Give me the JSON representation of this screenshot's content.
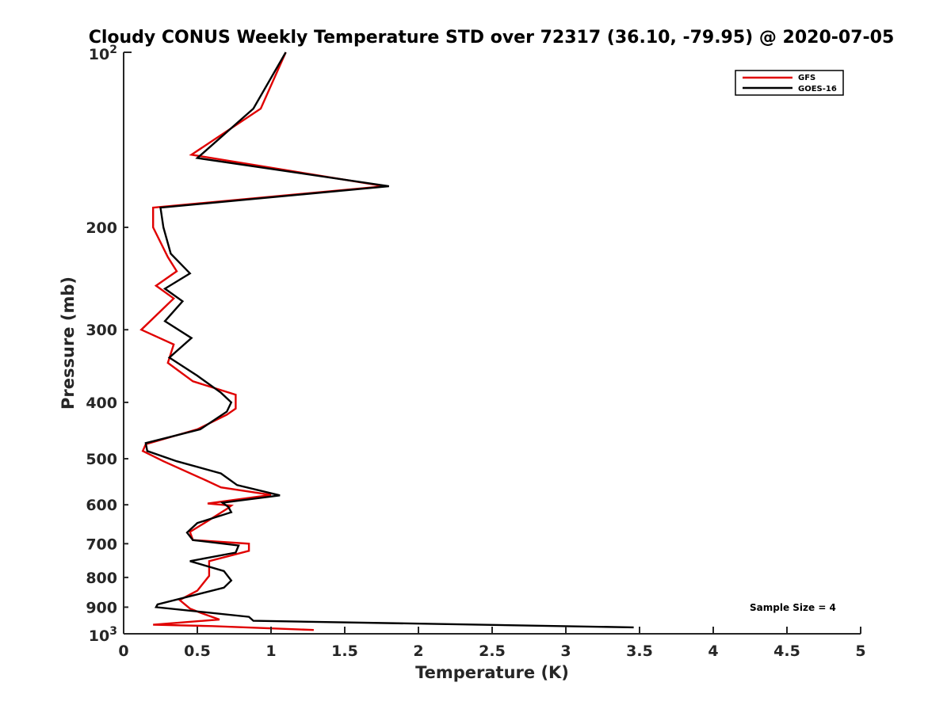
{
  "chart_data": {
    "type": "line",
    "title": "Cloudy CONUS Weekly Temperature STD over 72317 (36.10, -79.95) @ 2020-07-05",
    "xlabel": "Temperature (K)",
    "ylabel": "Pressure (mb)",
    "xlim": [
      0,
      5
    ],
    "ylim": [
      100,
      1000
    ],
    "y_scale": "log",
    "y_reversed": true,
    "x_ticks": [
      0,
      0.5,
      1,
      1.5,
      2,
      2.5,
      3,
      3.5,
      4,
      4.5,
      5
    ],
    "x_tick_labels": [
      "0",
      "0.5",
      "1",
      "1.5",
      "2",
      "2.5",
      "3",
      "3.5",
      "4",
      "4.5",
      "5"
    ],
    "y_ticks": [
      200,
      300,
      400,
      500,
      600,
      700,
      800,
      900
    ],
    "y_tick_labels": [
      "200",
      "300",
      "400",
      "500",
      "600",
      "700",
      "800",
      "900"
    ],
    "y_tick_end_labels": {
      "base": "10",
      "top_exp": "2",
      "bottom_exp": "3"
    },
    "grid": false,
    "legend_position": "top-right",
    "annotation": "Sample Size = 4",
    "series": [
      {
        "name": "GFS",
        "color": "#e00000",
        "points": [
          [
            1.1,
            100
          ],
          [
            0.93,
            125
          ],
          [
            0.46,
            150
          ],
          [
            1.77,
            170
          ],
          [
            0.2,
            185
          ],
          [
            0.2,
            200
          ],
          [
            0.3,
            225
          ],
          [
            0.36,
            238
          ],
          [
            0.22,
            252
          ],
          [
            0.34,
            265
          ],
          [
            0.12,
            300
          ],
          [
            0.34,
            318
          ],
          [
            0.3,
            342
          ],
          [
            0.47,
            368
          ],
          [
            0.76,
            388
          ],
          [
            0.76,
            410
          ],
          [
            0.7,
            420
          ],
          [
            0.5,
            445
          ],
          [
            0.15,
            472
          ],
          [
            0.13,
            485
          ],
          [
            0.27,
            505
          ],
          [
            0.56,
            545
          ],
          [
            0.66,
            560
          ],
          [
            1.0,
            577
          ],
          [
            0.57,
            597
          ],
          [
            0.73,
            602
          ],
          [
            0.7,
            610
          ],
          [
            0.57,
            640
          ],
          [
            0.45,
            668
          ],
          [
            0.47,
            690
          ],
          [
            0.85,
            700
          ],
          [
            0.85,
            720
          ],
          [
            0.58,
            750
          ],
          [
            0.58,
            795
          ],
          [
            0.5,
            843
          ],
          [
            0.38,
            875
          ],
          [
            0.45,
            905
          ],
          [
            0.52,
            920
          ],
          [
            0.65,
            945
          ],
          [
            0.2,
            965
          ],
          [
            0.6,
            970
          ],
          [
            1.29,
            985
          ]
        ]
      },
      {
        "name": "GOES-16",
        "color": "#000000",
        "points": [
          [
            1.1,
            100
          ],
          [
            0.88,
            125
          ],
          [
            0.5,
            152
          ],
          [
            1.8,
            170
          ],
          [
            0.25,
            185
          ],
          [
            0.27,
            200
          ],
          [
            0.32,
            222
          ],
          [
            0.45,
            240
          ],
          [
            0.28,
            255
          ],
          [
            0.4,
            268
          ],
          [
            0.28,
            290
          ],
          [
            0.46,
            310
          ],
          [
            0.31,
            335
          ],
          [
            0.5,
            360
          ],
          [
            0.66,
            385
          ],
          [
            0.73,
            400
          ],
          [
            0.7,
            415
          ],
          [
            0.52,
            445
          ],
          [
            0.15,
            470
          ],
          [
            0.16,
            485
          ],
          [
            0.36,
            505
          ],
          [
            0.66,
            530
          ],
          [
            0.77,
            555
          ],
          [
            1.06,
            578
          ],
          [
            0.67,
            595
          ],
          [
            0.71,
            605
          ],
          [
            0.73,
            618
          ],
          [
            0.5,
            645
          ],
          [
            0.43,
            670
          ],
          [
            0.47,
            690
          ],
          [
            0.78,
            705
          ],
          [
            0.76,
            725
          ],
          [
            0.45,
            750
          ],
          [
            0.68,
            780
          ],
          [
            0.73,
            810
          ],
          [
            0.68,
            833
          ],
          [
            0.23,
            890
          ],
          [
            0.22,
            900
          ],
          [
            0.85,
            935
          ],
          [
            0.88,
            950
          ],
          [
            3.46,
            975
          ]
        ]
      }
    ]
  }
}
